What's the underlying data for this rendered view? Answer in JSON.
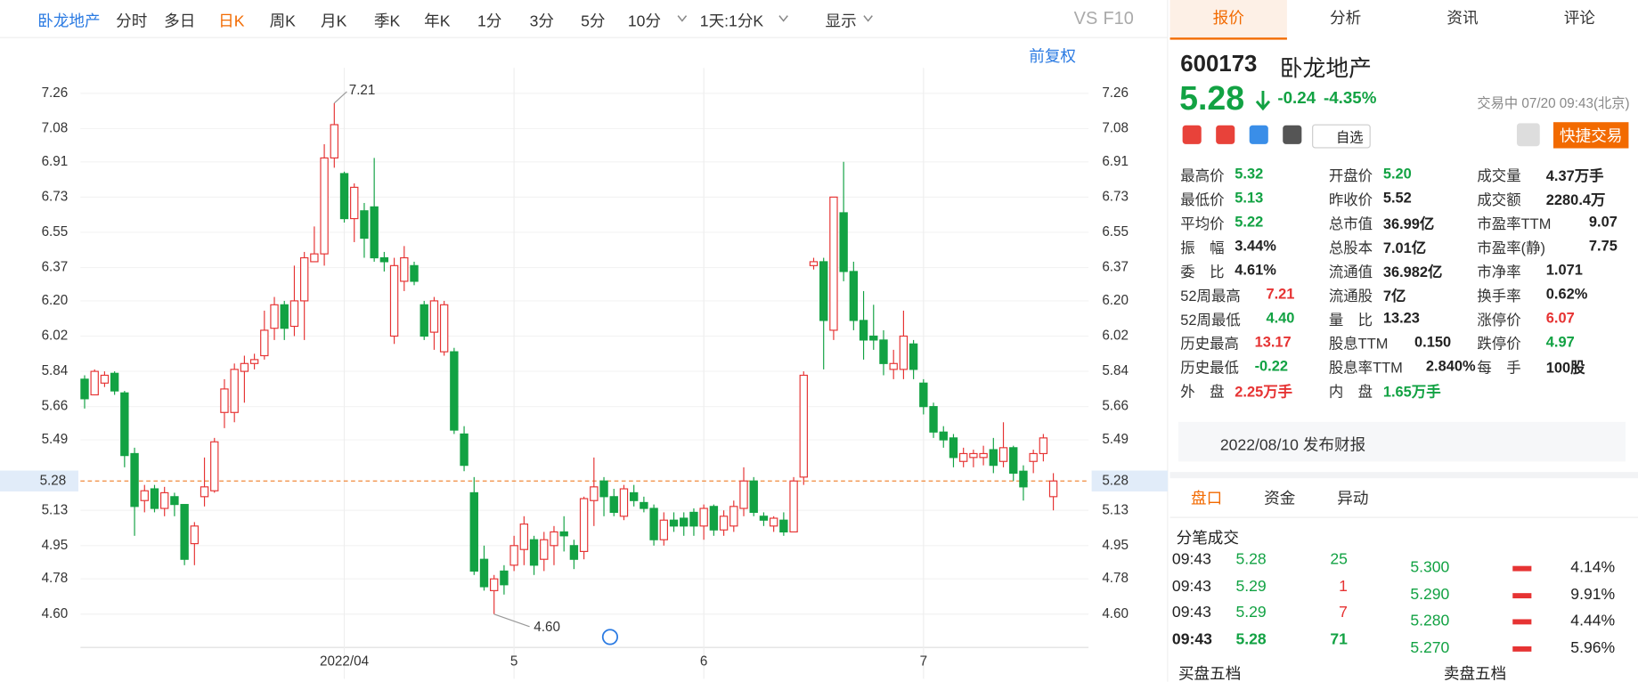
{
  "toolbar": {
    "stock": "卧龙地产",
    "periods": [
      "分时",
      "多日",
      "日K",
      "周K",
      "月K",
      "季K",
      "年K",
      "1分",
      "3分",
      "5分",
      "10分"
    ],
    "active": "日K",
    "interval": "1天:1分K",
    "display": "显示",
    "vs": "VS",
    "f10": "F10",
    "adjust": "前复权"
  },
  "chart_data": {
    "type": "candlestick",
    "categories": [
      null,
      null,
      null,
      null,
      null,
      null,
      null,
      null,
      null,
      null,
      null,
      null,
      null,
      null,
      null,
      null,
      null,
      null,
      null,
      null,
      null,
      null,
      null,
      null,
      null,
      null,
      "2022/04",
      null,
      null,
      null,
      null,
      null,
      null,
      null,
      null,
      null,
      null,
      null,
      null,
      null,
      null,
      null,
      null,
      "5",
      null,
      null,
      null,
      null,
      null,
      null,
      null,
      null,
      null,
      null,
      null,
      null,
      null,
      null,
      null,
      null,
      null,
      null,
      "6",
      null,
      null,
      null,
      null,
      null,
      null,
      null,
      null,
      null,
      null,
      null,
      null,
      null,
      null,
      null,
      null,
      null,
      null,
      null,
      null,
      null,
      "7",
      null,
      null,
      null,
      null,
      null,
      null,
      null,
      null,
      null,
      null,
      null,
      null,
      null
    ],
    "open": [
      5.8,
      5.72,
      5.78,
      5.83,
      5.73,
      5.42,
      5.18,
      5.24,
      5.14,
      5.2,
      5.16,
      4.96,
      5.2,
      5.23,
      5.63,
      5.63,
      5.84,
      5.88,
      5.92,
      6.06,
      6.18,
      6.07,
      6.2,
      6.4,
      6.44,
      6.93,
      6.85,
      6.62,
      6.66,
      6.68,
      6.42,
      6.02,
      6.3,
      6.38,
      6.18,
      6.04,
      5.94,
      5.94,
      5.52,
      5.22,
      4.88,
      4.72,
      4.82,
      4.85,
      4.93,
      4.98,
      4.88,
      4.95,
      5.02,
      4.95,
      4.92,
      5.18,
      5.28,
      5.2,
      5.1,
      5.22,
      5.17,
      5.14,
      4.98,
      5.08,
      5.09,
      5.12,
      5.05,
      5.15,
      5.03,
      5.05,
      5.14,
      5.28,
      5.1,
      5.05,
      5.08,
      5.02,
      5.3,
      6.38,
      6.4,
      6.05,
      6.65,
      6.35,
      6.1,
      6.02,
      6.0,
      5.85,
      5.85,
      5.98,
      5.78,
      5.66,
      5.53,
      5.5,
      5.38,
      5.4,
      5.4,
      5.44,
      5.38,
      5.45,
      5.33,
      5.38,
      5.42,
      5.2
    ],
    "close": [
      5.7,
      5.84,
      5.82,
      5.74,
      5.41,
      5.15,
      5.23,
      5.14,
      5.22,
      5.16,
      4.88,
      5.05,
      5.25,
      5.48,
      5.75,
      5.85,
      5.88,
      5.9,
      6.05,
      6.18,
      6.06,
      6.2,
      6.42,
      6.44,
      6.93,
      7.1,
      6.62,
      6.78,
      6.52,
      6.42,
      6.4,
      6.38,
      6.42,
      6.3,
      6.02,
      6.2,
      6.18,
      5.54,
      5.36,
      4.82,
      4.74,
      4.78,
      4.75,
      4.95,
      5.06,
      4.85,
      4.98,
      5.02,
      5.0,
      4.88,
      5.19,
      5.25,
      5.2,
      5.12,
      5.24,
      5.18,
      5.14,
      4.98,
      5.08,
      5.05,
      5.05,
      5.05,
      5.14,
      5.03,
      5.1,
      5.15,
      5.28,
      5.12,
      5.08,
      5.09,
      5.02,
      5.28,
      5.82,
      6.4,
      6.1,
      6.73,
      6.35,
      6.1,
      6.0,
      6.0,
      5.88,
      5.88,
      6.02,
      5.85,
      5.66,
      5.53,
      5.49,
      5.4,
      5.42,
      5.42,
      5.42,
      5.36,
      5.45,
      5.32,
      5.25,
      5.42,
      5.5,
      5.28
    ],
    "high": [
      5.82,
      5.85,
      5.84,
      5.84,
      5.74,
      5.45,
      5.26,
      5.26,
      5.25,
      5.22,
      5.16,
      5.07,
      5.4,
      5.5,
      5.8,
      5.88,
      5.92,
      5.93,
      6.15,
      6.22,
      6.2,
      6.38,
      6.45,
      6.58,
      7.0,
      7.21,
      6.86,
      6.8,
      6.7,
      6.93,
      6.45,
      6.42,
      6.48,
      6.4,
      6.2,
      6.22,
      6.2,
      5.96,
      5.56,
      5.3,
      4.95,
      4.8,
      4.85,
      5.0,
      5.1,
      5.0,
      5.02,
      5.05,
      5.1,
      4.98,
      5.2,
      5.4,
      5.3,
      5.24,
      5.26,
      5.26,
      5.2,
      5.16,
      5.12,
      5.12,
      5.12,
      5.14,
      5.16,
      5.16,
      5.13,
      5.18,
      5.35,
      5.3,
      5.12,
      5.1,
      5.12,
      5.3,
      5.84,
      6.42,
      6.42,
      6.73,
      6.91,
      6.4,
      6.25,
      6.18,
      6.05,
      5.95,
      6.15,
      6.0,
      5.8,
      5.68,
      5.56,
      5.52,
      5.45,
      5.44,
      5.46,
      5.5,
      5.58,
      5.46,
      5.36,
      5.44,
      5.52,
      5.32
    ],
    "low": [
      5.65,
      5.72,
      5.76,
      5.72,
      5.35,
      5.0,
      5.12,
      5.12,
      5.1,
      5.1,
      4.85,
      4.85,
      5.15,
      5.22,
      5.55,
      5.58,
      5.68,
      5.85,
      5.9,
      6.0,
      6.0,
      6.02,
      6.0,
      6.4,
      6.38,
      6.88,
      6.6,
      6.5,
      6.42,
      6.4,
      6.35,
      5.98,
      6.25,
      6.28,
      6.0,
      5.95,
      5.92,
      5.52,
      5.33,
      4.8,
      4.72,
      4.6,
      4.7,
      4.82,
      4.85,
      4.8,
      4.82,
      4.85,
      4.92,
      4.83,
      4.88,
      5.05,
      5.1,
      5.1,
      5.08,
      5.15,
      5.12,
      4.95,
      4.95,
      5.02,
      5.0,
      5.0,
      4.98,
      5.0,
      5.0,
      5.02,
      5.1,
      5.1,
      5.05,
      5.02,
      5.0,
      5.02,
      5.26,
      6.36,
      5.85,
      6.0,
      6.3,
      6.05,
      5.9,
      5.95,
      5.82,
      5.8,
      5.8,
      5.8,
      5.62,
      5.5,
      5.45,
      5.35,
      5.35,
      5.35,
      5.36,
      5.32,
      5.35,
      5.28,
      5.18,
      5.32,
      5.38,
      5.13
    ],
    "up_color": "#e63333",
    "down_color": "#12a243",
    "grid": true,
    "ylim": [
      4.43,
      7.39
    ],
    "yticks": [
      7.26,
      7.08,
      6.91,
      6.73,
      6.55,
      6.37,
      {
        "value": 6.2,
        "label": "6.20"
      },
      6.02,
      5.84,
      5.66,
      5.49,
      5.13,
      4.95,
      4.78,
      {
        "value": 4.6,
        "label": "4.60"
      }
    ],
    "last_price": {
      "value": 5.28,
      "label": "5.28"
    },
    "high_label": "7.21",
    "low_label": "4.60"
  },
  "tabs": [
    "报价",
    "分析",
    "资讯",
    "评论"
  ],
  "quote": {
    "code": "600173",
    "name": "卧龙地产",
    "price": "5.28",
    "change": "-0.24",
    "pct": "-4.35%",
    "status": "交易中 07/20 09:43(北京)",
    "watch": "自选",
    "trade": "快捷交易"
  },
  "stats": [
    [
      {
        "label": "最高价",
        "value": "5.32",
        "color": "#12a243"
      },
      {
        "label": "最低价",
        "value": "5.13",
        "color": "#12a243"
      },
      {
        "label": "平均价",
        "value": "5.22",
        "color": "#12a243"
      },
      {
        "label": "振　幅",
        "value": "3.44%",
        "color": "#222"
      },
      {
        "label": "委　比",
        "value": "4.61%",
        "color": "#222"
      },
      {
        "label": "52周最高",
        "value": "7.21",
        "color": "#e63333"
      },
      {
        "label": "52周最低",
        "value": "4.40",
        "color": "#12a243"
      },
      {
        "label": "历史最高",
        "value": "13.17",
        "color": "#e63333"
      },
      {
        "label": "历史最低",
        "value": "-0.22",
        "color": "#12a243"
      },
      {
        "label": "外　盘",
        "value": "2.25万手",
        "color": "#e63333"
      }
    ],
    [
      {
        "label": "开盘价",
        "value": "5.20",
        "color": "#12a243"
      },
      {
        "label": "昨收价",
        "value": "5.52",
        "color": "#222"
      },
      {
        "label": "总市值",
        "value": "36.99亿",
        "color": "#222"
      },
      {
        "label": "总股本",
        "value": "7.01亿",
        "color": "#222"
      },
      {
        "label": "流通值",
        "value": "36.982亿",
        "color": "#222"
      },
      {
        "label": "流通股",
        "value": "7亿",
        "color": "#222"
      },
      {
        "label": "量　比",
        "value": "13.23",
        "color": "#222"
      },
      {
        "label": "股息TTM",
        "value": "0.150",
        "color": "#222"
      },
      {
        "label": "股息率TTM",
        "value": "2.840%",
        "color": "#222"
      },
      {
        "label": "内　盘",
        "value": "1.65万手",
        "color": "#12a243"
      }
    ],
    [
      {
        "label": "成交量",
        "value": "4.37万手",
        "color": "#222"
      },
      {
        "label": "成交额",
        "value": "2280.4万",
        "color": "#222"
      },
      {
        "label": "市盈率TTM",
        "value": "9.07",
        "color": "#222"
      },
      {
        "label": "市盈率(静)",
        "value": "7.75",
        "color": "#222"
      },
      {
        "label": "市净率",
        "value": "1.071",
        "color": "#222"
      },
      {
        "label": "换手率",
        "value": "0.62%",
        "color": "#222"
      },
      {
        "label": "涨停价",
        "value": "6.07",
        "color": "#e63333"
      },
      {
        "label": "跌停价",
        "value": "4.97",
        "color": "#12a243"
      },
      {
        "label": "每　手",
        "value": "100股",
        "color": "#222"
      }
    ]
  ],
  "notice": "2022/08/10 发布财报",
  "subtabs": [
    "盘口",
    "资金",
    "异动"
  ],
  "trades_title": "分笔成交",
  "trades": [
    {
      "time": "09:43",
      "price": "5.28",
      "volume": "25",
      "color": "#12a243"
    },
    {
      "time": "09:43",
      "price": "5.29",
      "volume": "1",
      "color": "#e63333"
    },
    {
      "time": "09:43",
      "price": "5.29",
      "volume": "7",
      "color": "#e63333"
    },
    {
      "time": "09:43",
      "price": "5.28",
      "volume": "71",
      "color": "#12a243"
    }
  ],
  "book": [
    {
      "price": "5.300",
      "pct": "4.14%"
    },
    {
      "price": "5.290",
      "pct": "9.91%"
    },
    {
      "price": "5.280",
      "pct": "4.44%"
    },
    {
      "price": "5.270",
      "pct": "5.96%"
    }
  ],
  "book_headers": [
    "买盘五档",
    "卖盘五档"
  ]
}
